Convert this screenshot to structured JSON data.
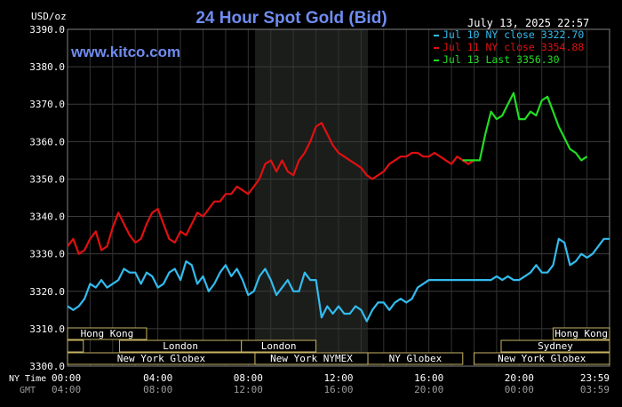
{
  "chart_data": {
    "type": "line",
    "title": "24 Hour Spot Gold (Bid)",
    "watermark": "www.kitco.com",
    "date_time": "July 13, 2025 22:57",
    "ylabel": "USD/oz",
    "ylim": [
      3300,
      3390
    ],
    "y_ticks": [
      "3300.0",
      "3310.0",
      "3320.0",
      "3330.0",
      "3340.0",
      "3350.0",
      "3360.0",
      "3370.0",
      "3380.0",
      "3390.0"
    ],
    "x_label_ny": "NY Time",
    "x_label_gmt": "GMT",
    "x_ticks_ny": [
      "00:00",
      "04:00",
      "08:00",
      "12:00",
      "16:00",
      "20:00",
      "23:59"
    ],
    "x_ticks_gmt": [
      "04:00",
      "08:00",
      "12:00",
      "16:00",
      "20:00",
      "00:00",
      "03:59"
    ],
    "grid": true,
    "legend_position": "top-right",
    "colors": {
      "jul10": "#33bbee",
      "jul11": "#e01010",
      "jul13": "#22dd22",
      "title": "#6f8cf0",
      "market_border": "#c8b464"
    },
    "series": [
      {
        "name": "Jul 10 NY close 3322.70",
        "color": "#33bbee",
        "x": [
          0,
          0.25,
          0.5,
          0.75,
          1,
          1.25,
          1.5,
          1.75,
          2,
          2.25,
          2.5,
          2.75,
          3,
          3.25,
          3.5,
          3.75,
          4,
          4.25,
          4.5,
          4.75,
          5,
          5.25,
          5.5,
          5.75,
          6,
          6.25,
          6.5,
          6.75,
          7,
          7.25,
          7.5,
          7.75,
          8,
          8.25,
          8.5,
          8.75,
          9,
          9.25,
          9.5,
          9.75,
          10,
          10.25,
          10.5,
          10.75,
          11,
          11.25,
          11.5,
          11.75,
          12,
          12.25,
          12.5,
          12.75,
          13,
          13.25,
          13.5,
          13.75,
          14,
          14.25,
          14.5,
          14.75,
          15,
          15.25,
          15.5,
          15.75,
          16,
          16.25,
          16.5,
          16.75,
          17,
          17.25,
          17.5,
          17.75,
          18,
          18.25,
          18.5,
          18.75,
          19,
          19.25,
          19.5,
          19.75,
          20,
          20.25,
          20.5,
          20.75,
          21,
          21.25,
          21.5,
          21.75,
          22,
          22.25,
          22.5,
          22.75,
          23,
          23.25,
          23.5,
          23.75,
          24
        ],
        "values": [
          3316,
          3315,
          3316,
          3318,
          3322,
          3321,
          3323,
          3321,
          3322,
          3323,
          3326,
          3325,
          3325,
          3322,
          3325,
          3324,
          3321,
          3322,
          3325,
          3326,
          3323,
          3328,
          3327,
          3322,
          3324,
          3320,
          3322,
          3325,
          3327,
          3324,
          3326,
          3323,
          3319,
          3320,
          3324,
          3326,
          3323,
          3319,
          3321,
          3323,
          3320,
          3320,
          3325,
          3323,
          3323,
          3313,
          3316,
          3314,
          3316,
          3314,
          3314,
          3316,
          3315,
          3312,
          3315,
          3317,
          3317,
          3315,
          3317,
          3318,
          3317,
          3318,
          3321,
          3322,
          3323,
          3323,
          3323,
          3323,
          3323,
          3323,
          3323,
          3323,
          3323,
          3323,
          3323,
          3323,
          3324,
          3323,
          3324,
          3323,
          3323,
          3324,
          3325,
          3327,
          3325,
          3325,
          3327,
          3334,
          3333,
          3327,
          3328,
          3330,
          3329,
          3330,
          3332,
          3334,
          3334
        ]
      },
      {
        "name": "Jul 11 NY close 3354.88",
        "color": "#e01010",
        "x": [
          0,
          0.25,
          0.5,
          0.75,
          1,
          1.25,
          1.5,
          1.75,
          2,
          2.25,
          2.5,
          2.75,
          3,
          3.25,
          3.5,
          3.75,
          4,
          4.25,
          4.5,
          4.75,
          5,
          5.25,
          5.5,
          5.75,
          6,
          6.25,
          6.5,
          6.75,
          7,
          7.25,
          7.5,
          7.75,
          8,
          8.25,
          8.5,
          8.75,
          9,
          9.25,
          9.5,
          9.75,
          10,
          10.25,
          10.5,
          10.75,
          11,
          11.25,
          11.5,
          11.75,
          12,
          12.25,
          12.5,
          12.75,
          13,
          13.25,
          13.5,
          13.75,
          14,
          14.25,
          14.5,
          14.75,
          15,
          15.25,
          15.5,
          15.75,
          16,
          16.25,
          16.5,
          16.75,
          17,
          17.25,
          17.5,
          17.75,
          18
        ],
        "values": [
          3332,
          3334,
          3330,
          3331,
          3334,
          3336,
          3331,
          3332,
          3337,
          3341,
          3338,
          3335,
          3333,
          3334,
          3338,
          3341,
          3342,
          3338,
          3334,
          3333,
          3336,
          3335,
          3338,
          3341,
          3340,
          3342,
          3344,
          3344,
          3346,
          3346,
          3348,
          3347,
          3346,
          3348,
          3350,
          3354,
          3355,
          3352,
          3355,
          3352,
          3351,
          3355,
          3357,
          3360,
          3364,
          3365,
          3362,
          3359,
          3357,
          3356,
          3355,
          3354,
          3353,
          3351,
          3350,
          3351,
          3352,
          3354,
          3355,
          3356,
          3356,
          3357,
          3357,
          3356,
          3356,
          3357,
          3356,
          3355,
          3354,
          3356,
          3355,
          3354,
          3355
        ]
      },
      {
        "name": "Jul 13 Last 3356.30",
        "color": "#22dd22",
        "x": [
          17.5,
          17.75,
          18,
          18.25,
          18.5,
          18.75,
          19,
          19.25,
          19.5,
          19.75,
          20,
          20.25,
          20.5,
          20.75,
          21,
          21.25,
          21.5,
          21.75,
          22,
          22.25,
          22.5,
          22.75,
          23
        ],
        "values": [
          3355,
          3355,
          3355,
          3355,
          3362,
          3368,
          3366,
          3367,
          3370,
          3373,
          3366,
          3366,
          3368,
          3367,
          3371,
          3372,
          3368,
          3364,
          3361,
          3358,
          3357,
          3355,
          3356
        ]
      }
    ],
    "market_bands": [
      {
        "label": "Hong Kong",
        "row": 0,
        "start": 0,
        "end": 3.5
      },
      {
        "label": "Hong Kong",
        "row": 0,
        "start": 21.5,
        "end": 24
      },
      {
        "label": "London",
        "row": 1,
        "start": 0,
        "end": 0.7
      },
      {
        "label": "London",
        "row": 1,
        "start": 2.3,
        "end": 7.7
      },
      {
        "label": "London",
        "row": 1,
        "start": 7.7,
        "end": 11
      },
      {
        "label": "Sydney",
        "row": 1,
        "start": 19.2,
        "end": 24
      },
      {
        "label": "New York Globex",
        "row": 2,
        "start": 0,
        "end": 8.3
      },
      {
        "label": "New York NYMEX",
        "row": 2,
        "start": 8.3,
        "end": 13.3
      },
      {
        "label": "NY Globex",
        "row": 2,
        "start": 13.3,
        "end": 17.5
      },
      {
        "label": "New York Globex",
        "row": 2,
        "start": 18,
        "end": 24
      }
    ],
    "shaded_region": {
      "start": 8.3,
      "end": 13.3
    }
  }
}
